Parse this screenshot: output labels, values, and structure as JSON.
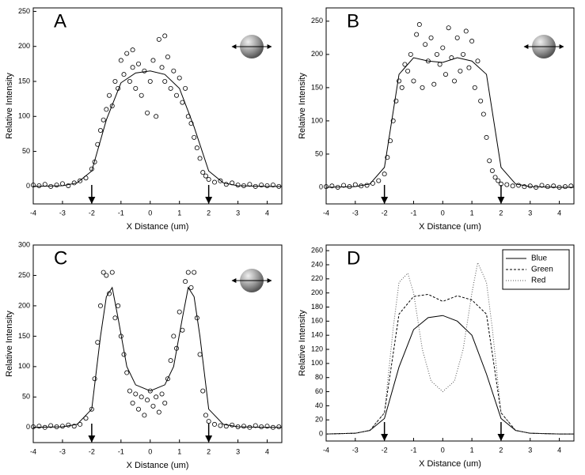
{
  "chart_data": [
    {
      "type": "scatter",
      "label": "A",
      "xlabel": "X Distance (um)",
      "ylabel": "Relative Intensity",
      "xlim": [
        -4,
        4.5
      ],
      "ylim": [
        -25,
        255
      ],
      "xticks": [
        -4,
        -3,
        -2,
        -1,
        0,
        1,
        2,
        3,
        4
      ],
      "yticks": [
        0,
        50,
        100,
        150,
        200,
        250
      ],
      "markers_x": [
        -2,
        2
      ],
      "series": [
        {
          "mode": "markers",
          "color": "#000000",
          "x": [
            -4,
            -3.8,
            -3.6,
            -3.4,
            -3.2,
            -3,
            -2.8,
            -2.6,
            -2.4,
            -2.2,
            -2,
            -1.9,
            -1.8,
            -1.7,
            -1.6,
            -1.5,
            -1.4,
            -1.3,
            -1.2,
            -1.1,
            -1,
            -0.9,
            -0.8,
            -0.7,
            -0.6,
            -0.6,
            -0.5,
            -0.4,
            -0.3,
            -0.2,
            -0.1,
            0,
            0.1,
            0.2,
            0.3,
            0.4,
            0.5,
            0.5,
            0.6,
            0.7,
            0.8,
            0.9,
            1,
            1.1,
            1.2,
            1.3,
            1.4,
            1.5,
            1.6,
            1.7,
            1.8,
            1.9,
            2,
            2.2,
            2.4,
            2.6,
            2.8,
            3,
            3.2,
            3.4,
            3.6,
            3.8,
            4,
            4.2,
            4.4
          ],
          "values": [
            2,
            1,
            3,
            0,
            2,
            4,
            1,
            5,
            8,
            12,
            25,
            35,
            60,
            80,
            95,
            110,
            130,
            115,
            150,
            140,
            180,
            160,
            190,
            150,
            170,
            195,
            140,
            175,
            130,
            165,
            105,
            150,
            180,
            100,
            210,
            170,
            150,
            215,
            185,
            140,
            165,
            130,
            155,
            120,
            140,
            100,
            90,
            70,
            55,
            40,
            20,
            15,
            10,
            6,
            8,
            3,
            5,
            2,
            1,
            3,
            0,
            2,
            1,
            2,
            0
          ]
        },
        {
          "mode": "line",
          "color": "#000000",
          "x": [
            -4,
            -3,
            -2.5,
            -2,
            -1.5,
            -1,
            -0.5,
            0,
            0.5,
            1,
            1.5,
            2,
            2.5,
            3,
            4,
            4.5
          ],
          "values": [
            0,
            1,
            5,
            22,
            95,
            148,
            162,
            165,
            160,
            140,
            85,
            22,
            5,
            1,
            0,
            0
          ]
        }
      ]
    },
    {
      "type": "scatter",
      "label": "B",
      "xlabel": "X Distance (um)",
      "ylabel": "Relative Intensity",
      "xlim": [
        -4,
        4.5
      ],
      "ylim": [
        -25,
        270
      ],
      "xticks": [
        -4,
        -3,
        -2,
        -1,
        0,
        1,
        2,
        3,
        4
      ],
      "yticks": [
        0,
        50,
        100,
        150,
        200,
        250
      ],
      "markers_x": [
        -2,
        2
      ],
      "series": [
        {
          "mode": "markers",
          "color": "#000000",
          "x": [
            -4,
            -3.8,
            -3.6,
            -3.4,
            -3.2,
            -3,
            -2.8,
            -2.6,
            -2.4,
            -2.2,
            -2,
            -1.9,
            -1.8,
            -1.7,
            -1.6,
            -1.5,
            -1.4,
            -1.3,
            -1.2,
            -1.1,
            -1,
            -0.9,
            -0.8,
            -0.7,
            -0.6,
            -0.5,
            -0.4,
            -0.3,
            -0.2,
            -0.1,
            0,
            0.1,
            0.2,
            0.3,
            0.4,
            0.5,
            0.6,
            0.7,
            0.8,
            0.9,
            1,
            1.1,
            1.2,
            1.3,
            1.4,
            1.5,
            1.6,
            1.7,
            1.8,
            1.9,
            2,
            2.2,
            2.4,
            2.6,
            2.8,
            3,
            3.2,
            3.4,
            3.6,
            3.8,
            4,
            4.2,
            4.4
          ],
          "values": [
            1,
            2,
            0,
            3,
            1,
            4,
            2,
            3,
            6,
            10,
            20,
            45,
            70,
            100,
            130,
            160,
            150,
            185,
            175,
            200,
            160,
            230,
            245,
            150,
            215,
            190,
            225,
            155,
            200,
            185,
            210,
            170,
            240,
            195,
            160,
            225,
            175,
            200,
            235,
            180,
            220,
            150,
            190,
            130,
            110,
            75,
            40,
            25,
            15,
            10,
            5,
            4,
            2,
            3,
            1,
            2,
            0,
            3,
            1,
            2,
            0,
            1,
            2
          ]
        },
        {
          "mode": "line",
          "color": "#000000",
          "x": [
            -4,
            -3,
            -2.5,
            -2,
            -1.5,
            -1,
            -0.5,
            0,
            0.5,
            1,
            1.5,
            2,
            2.5,
            3,
            4,
            4.5
          ],
          "values": [
            0,
            1,
            5,
            30,
            170,
            195,
            190,
            188,
            195,
            190,
            170,
            30,
            5,
            1,
            0,
            0
          ]
        }
      ]
    },
    {
      "type": "scatter",
      "label": "C",
      "xlabel": "X Distance (um)",
      "ylabel": "Relative Intensity",
      "xlim": [
        -4,
        4.5
      ],
      "ylim": [
        -25,
        300
      ],
      "xticks": [
        -4,
        -3,
        -2,
        -1,
        0,
        1,
        2,
        3,
        4
      ],
      "yticks": [
        0,
        50,
        100,
        150,
        200,
        250,
        300
      ],
      "markers_x": [
        -2,
        2
      ],
      "series": [
        {
          "mode": "markers",
          "color": "#000000",
          "x": [
            -4,
            -3.8,
            -3.6,
            -3.4,
            -3.2,
            -3,
            -2.8,
            -2.6,
            -2.4,
            -2.2,
            -2,
            -1.9,
            -1.8,
            -1.7,
            -1.6,
            -1.5,
            -1.4,
            -1.3,
            -1.2,
            -1.1,
            -1,
            -0.9,
            -0.8,
            -0.7,
            -0.6,
            -0.5,
            -0.4,
            -0.3,
            -0.2,
            -0.1,
            0,
            0.1,
            0.2,
            0.3,
            0.4,
            0.5,
            0.6,
            0.7,
            0.8,
            0.9,
            1,
            1.1,
            1.2,
            1.3,
            1.4,
            1.5,
            1.6,
            1.7,
            1.8,
            1.9,
            2,
            2.2,
            2.4,
            2.6,
            2.8,
            3,
            3.2,
            3.4,
            3.6,
            3.8,
            4,
            4.2,
            4.4
          ],
          "values": [
            1,
            2,
            0,
            3,
            1,
            2,
            4,
            2,
            5,
            15,
            30,
            80,
            140,
            200,
            255,
            250,
            220,
            255,
            180,
            200,
            150,
            120,
            90,
            60,
            40,
            55,
            30,
            50,
            20,
            45,
            60,
            35,
            50,
            25,
            55,
            40,
            80,
            110,
            150,
            130,
            190,
            160,
            240,
            255,
            230,
            255,
            180,
            120,
            60,
            20,
            10,
            5,
            3,
            2,
            4,
            1,
            2,
            0,
            3,
            1,
            2,
            0,
            1
          ]
        },
        {
          "mode": "line",
          "color": "#000000",
          "x": [
            -4,
            -3,
            -2.5,
            -2,
            -1.7,
            -1.5,
            -1.3,
            -1.1,
            -0.8,
            -0.5,
            0,
            0.5,
            0.8,
            1.1,
            1.3,
            1.5,
            1.7,
            2,
            2.5,
            3,
            4,
            4.5
          ],
          "values": [
            0,
            1,
            5,
            30,
            150,
            215,
            230,
            180,
            100,
            70,
            60,
            70,
            100,
            180,
            230,
            215,
            150,
            30,
            5,
            1,
            0,
            0
          ]
        }
      ]
    },
    {
      "type": "line",
      "label": "D",
      "xlabel": "X Distance (um)",
      "ylabel": "Relative Intensity",
      "xlim": [
        -4,
        4.5
      ],
      "ylim": [
        -10,
        268
      ],
      "xticks": [
        -4,
        -3,
        -2,
        -1,
        0,
        1,
        2,
        3,
        4
      ],
      "yticks": [
        0,
        20,
        40,
        60,
        80,
        100,
        120,
        140,
        160,
        180,
        200,
        220,
        240,
        260
      ],
      "markers_x": [
        -2,
        2
      ],
      "legend": "top-right",
      "series": [
        {
          "name": "Blue",
          "color": "#000000",
          "dash": "none",
          "x": [
            -4,
            -3,
            -2.5,
            -2,
            -1.5,
            -1,
            -0.5,
            0,
            0.5,
            1,
            1.5,
            2,
            2.5,
            3,
            4,
            4.5
          ],
          "values": [
            0,
            1,
            5,
            22,
            95,
            148,
            165,
            168,
            160,
            140,
            85,
            22,
            5,
            1,
            0,
            0
          ]
        },
        {
          "name": "Green",
          "color": "#000000",
          "dash": "3,2",
          "x": [
            -4,
            -3,
            -2.5,
            -2,
            -1.5,
            -1,
            -0.5,
            0,
            0.5,
            1,
            1.5,
            2,
            2.5,
            3,
            4,
            4.5
          ],
          "values": [
            0,
            1,
            5,
            30,
            170,
            195,
            198,
            188,
            196,
            190,
            170,
            30,
            5,
            1,
            0,
            0
          ]
        },
        {
          "name": "Red",
          "color": "#555555",
          "dash": "1,2",
          "x": [
            -4,
            -3,
            -2.5,
            -2,
            -1.7,
            -1.5,
            -1.2,
            -1,
            -0.7,
            -0.4,
            0,
            0.4,
            0.7,
            1,
            1.2,
            1.5,
            1.7,
            2,
            2.5,
            3,
            4,
            4.5
          ],
          "values": [
            0,
            1,
            5,
            30,
            150,
            215,
            228,
            200,
            120,
            75,
            60,
            75,
            120,
            200,
            243,
            215,
            150,
            30,
            5,
            1,
            0,
            0
          ]
        }
      ]
    }
  ]
}
